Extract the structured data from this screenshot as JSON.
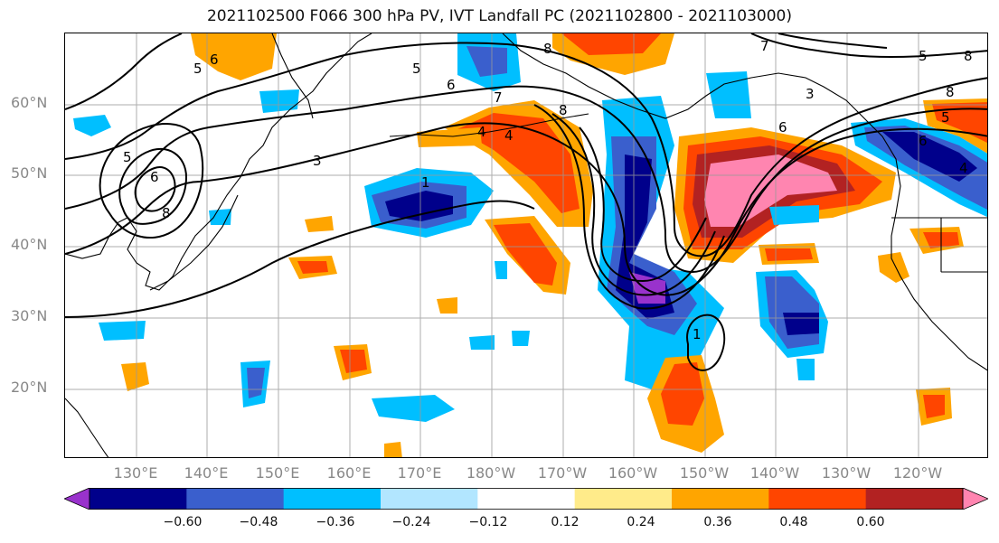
{
  "title": "2021102500 F066 300 hPa PV, IVT Landfall PC (2021102800 - 2021103000)",
  "lat_labels": [
    "60°N",
    "50°N",
    "40°N",
    "30°N",
    "20°N"
  ],
  "lon_labels": [
    "130°E",
    "140°E",
    "150°E",
    "160°E",
    "170°E",
    "180°W",
    "170°W",
    "160°W",
    "150°W",
    "140°W",
    "130°W",
    "120°W"
  ],
  "contour_labels": [
    "6",
    "5",
    "5",
    "6",
    "7",
    "8",
    "4",
    "4",
    "3",
    "5",
    "6",
    "8",
    "8",
    "7",
    "8",
    "8",
    "5",
    "3",
    "1",
    "1",
    "6",
    "5",
    "6",
    "4"
  ],
  "colorbar": {
    "ticks": [
      "−0.60",
      "−0.48",
      "−0.36",
      "−0.24",
      "−0.12",
      "0.12",
      "0.24",
      "0.36",
      "0.48",
      "0.60"
    ],
    "colors": [
      "#9932cc",
      "#00008b",
      "#3a5fcd",
      "#00bfff",
      "#b2e6ff",
      "#ffffff",
      "#ffeb8a",
      "#ffa500",
      "#ff4500",
      "#b22222",
      "#ff85b0"
    ]
  }
}
